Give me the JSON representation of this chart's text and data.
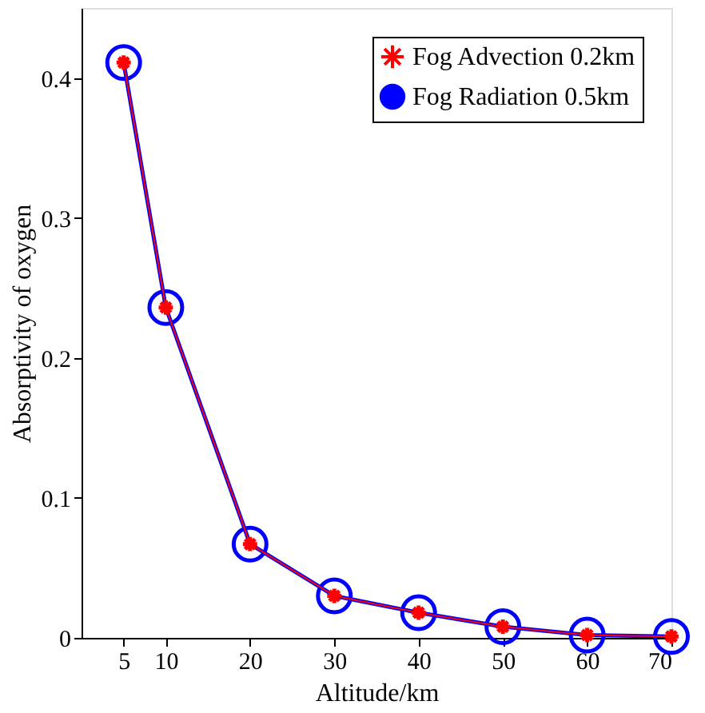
{
  "chart_data": {
    "type": "line",
    "xlabel": "Altitude/km",
    "ylabel": "Absorptivity of oxygen",
    "x": [
      5,
      10,
      20,
      30,
      40,
      50,
      60,
      70
    ],
    "series": [
      {
        "name": "Fog Advection 0.2km",
        "color": "#ff0000",
        "marker": "cross",
        "values": [
          0.411,
          0.236,
          0.067,
          0.03,
          0.018,
          0.008,
          0.002,
          0.001
        ]
      },
      {
        "name": "Fog Radiation 0.5km",
        "color": "#0000ff",
        "marker": "circle",
        "values": [
          0.411,
          0.236,
          0.067,
          0.03,
          0.018,
          0.008,
          0.002,
          0.001
        ]
      }
    ],
    "xlim": [
      0,
      70
    ],
    "ylim": [
      0,
      0.45
    ],
    "xticks": [
      5,
      10,
      20,
      30,
      40,
      50,
      60,
      70
    ],
    "yticks": [
      0,
      0.1,
      0.2,
      0.3,
      0.4
    ],
    "grid": false,
    "legend": "top right",
    "line_style": "solid"
  }
}
